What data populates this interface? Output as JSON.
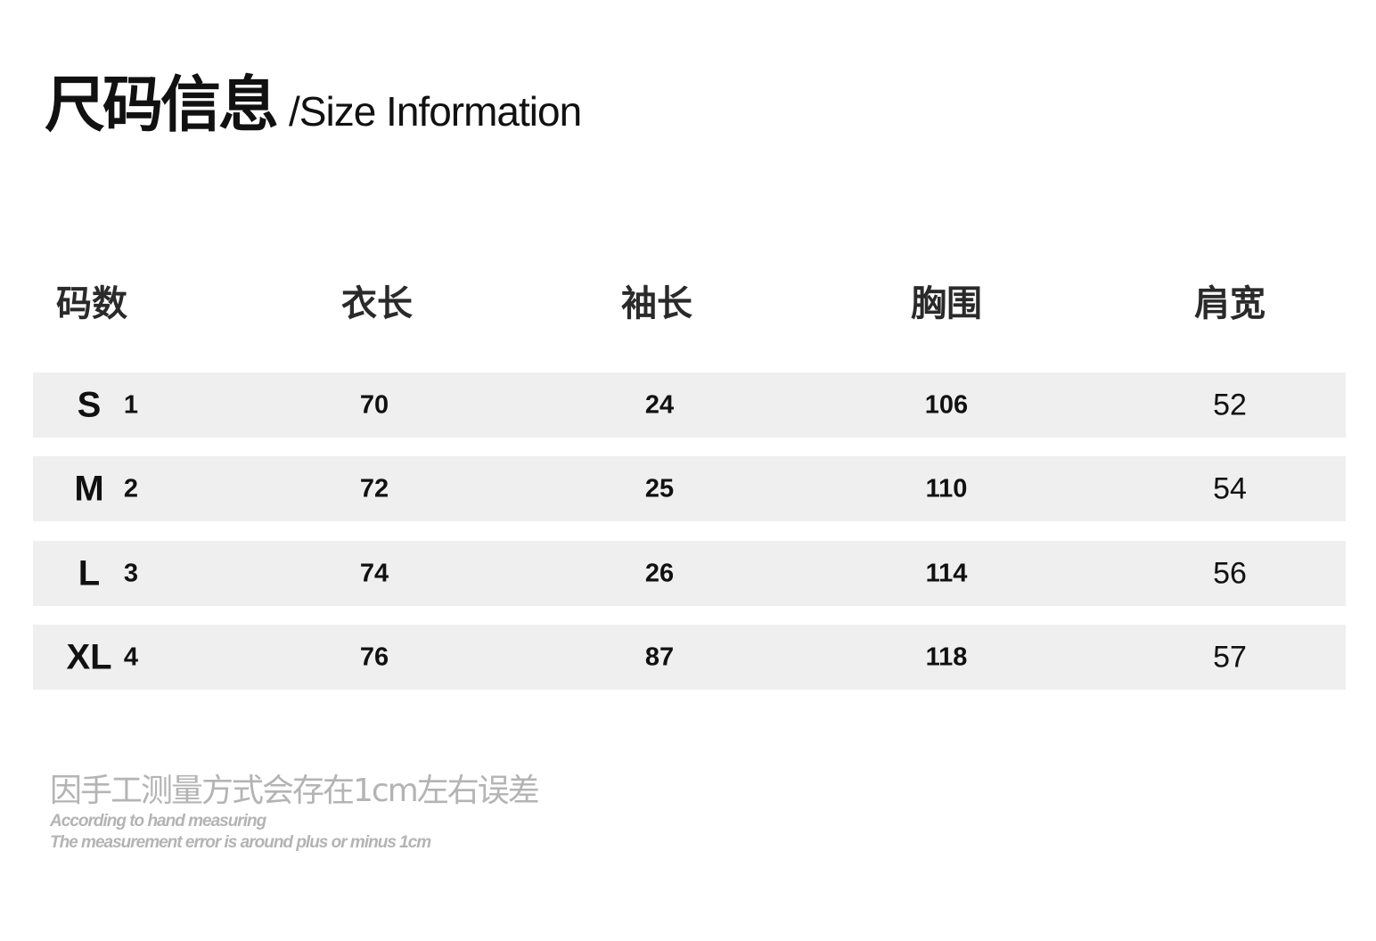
{
  "title": {
    "zh": "尺码信息",
    "en": "/Size Information"
  },
  "columns": [
    "码数",
    "衣长",
    "袖长",
    "胸围",
    "肩宽"
  ],
  "rows": [
    {
      "size": "S",
      "index": "1",
      "length": "70",
      "sleeve": "24",
      "chest": "106",
      "shoulder": "52"
    },
    {
      "size": "M",
      "index": "2",
      "length": "72",
      "sleeve": "25",
      "chest": "110",
      "shoulder": "54"
    },
    {
      "size": "L",
      "index": "3",
      "length": "74",
      "sleeve": "26",
      "chest": "114",
      "shoulder": "56"
    },
    {
      "size": "XL",
      "index": "4",
      "length": "76",
      "sleeve": "87",
      "chest": "118",
      "shoulder": "57"
    }
  ],
  "note": {
    "zh": "因手工测量方式会存在1cm左右误差",
    "en_line1": "According to hand measuring",
    "en_line2": "The measurement error is around plus or minus 1cm"
  },
  "colors": {
    "row_bg": "#efefef",
    "note": "#b4b4b4",
    "text": "#111111"
  }
}
